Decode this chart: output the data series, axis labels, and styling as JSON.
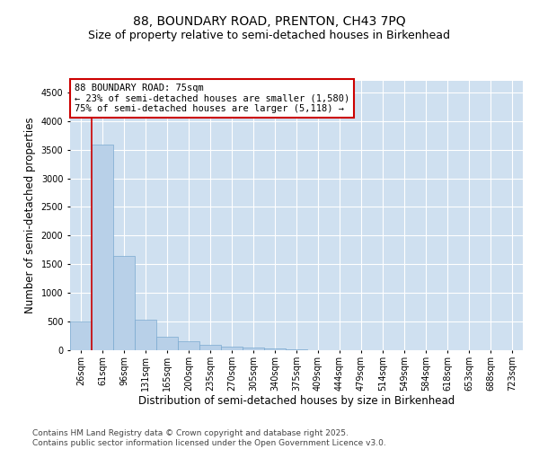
{
  "title_line1": "88, BOUNDARY ROAD, PRENTON, CH43 7PQ",
  "title_line2": "Size of property relative to semi-detached houses in Birkenhead",
  "xlabel": "Distribution of semi-detached houses by size in Birkenhead",
  "ylabel": "Number of semi-detached properties",
  "categories": [
    "26sqm",
    "61sqm",
    "96sqm",
    "131sqm",
    "165sqm",
    "200sqm",
    "235sqm",
    "270sqm",
    "305sqm",
    "340sqm",
    "375sqm",
    "409sqm",
    "444sqm",
    "479sqm",
    "514sqm",
    "549sqm",
    "584sqm",
    "618sqm",
    "653sqm",
    "688sqm",
    "723sqm"
  ],
  "values": [
    500,
    3580,
    1640,
    530,
    240,
    150,
    100,
    60,
    40,
    30,
    15,
    5,
    2,
    0,
    0,
    0,
    0,
    0,
    0,
    0,
    0
  ],
  "bar_color": "#b8d0e8",
  "bar_edge_color": "#7aaad0",
  "vline_color": "#cc0000",
  "vline_x": 0.5,
  "annotation_title": "88 BOUNDARY ROAD: 75sqm",
  "annotation_line1": "← 23% of semi-detached houses are smaller (1,580)",
  "annotation_line2": "75% of semi-detached houses are larger (5,118) →",
  "ylim_max": 4700,
  "yticks": [
    0,
    500,
    1000,
    1500,
    2000,
    2500,
    3000,
    3500,
    4000,
    4500
  ],
  "bg_color": "#cfe0f0",
  "footer_line1": "Contains HM Land Registry data © Crown copyright and database right 2025.",
  "footer_line2": "Contains public sector information licensed under the Open Government Licence v3.0.",
  "title_fontsize": 10,
  "subtitle_fontsize": 9,
  "axis_label_fontsize": 8.5,
  "tick_fontsize": 7,
  "annotation_fontsize": 7.5,
  "footer_fontsize": 6.5
}
